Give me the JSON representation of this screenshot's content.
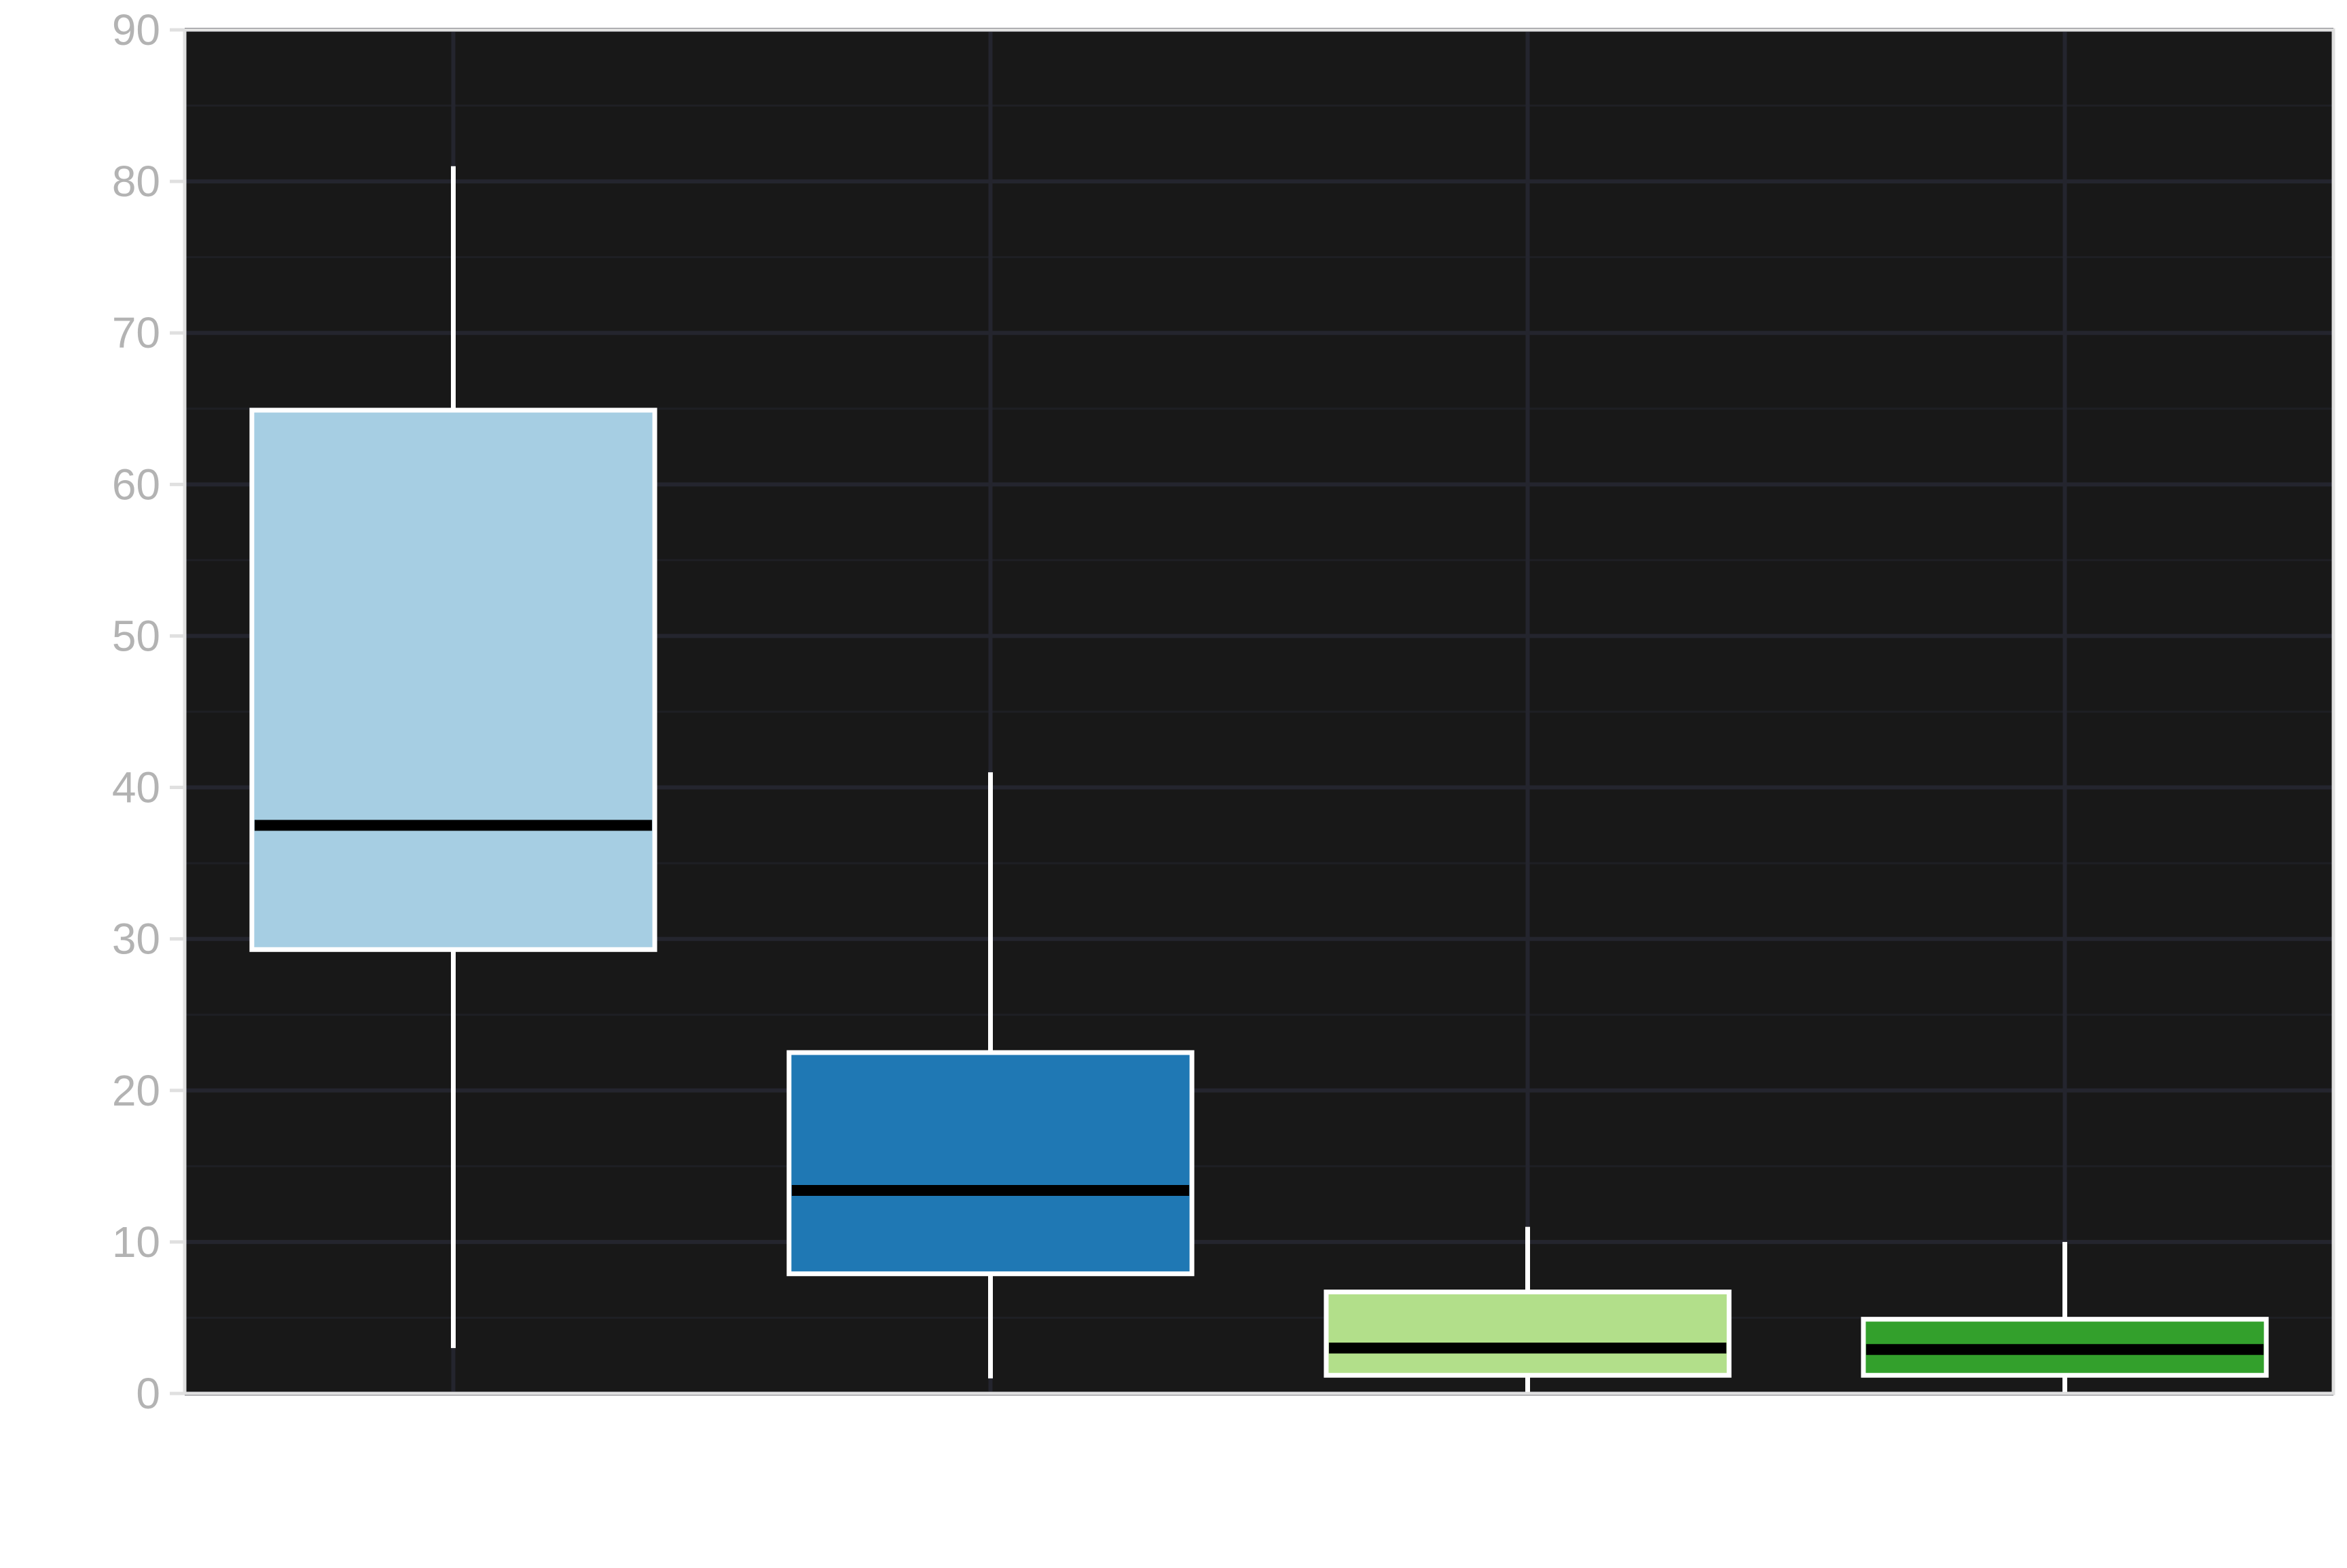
{
  "chart_data": {
    "type": "box",
    "title": "",
    "xlabel": "",
    "ylabel": "",
    "ylim": [
      0,
      90
    ],
    "yticks": [
      0,
      10,
      20,
      30,
      40,
      50,
      60,
      70,
      80,
      90
    ],
    "ytick_labels": [
      "0",
      "10",
      "20",
      "30",
      "40",
      "50",
      "60",
      "70",
      "80",
      "90"
    ],
    "grid": true,
    "legend": "none",
    "boxes": [
      {
        "whisker_low": 3,
        "q1": 29.3,
        "median": 37.5,
        "q3": 64.9,
        "whisker_high": 81,
        "color": "#a6cee3"
      },
      {
        "whisker_low": 1,
        "q1": 7.9,
        "median": 13.4,
        "q3": 22.5,
        "whisker_high": 41,
        "color": "#1f78b4"
      },
      {
        "whisker_low": 0,
        "q1": 1.2,
        "median": 3.0,
        "q3": 6.7,
        "whisker_high": 11,
        "color": "#b2df8a"
      },
      {
        "whisker_low": 0,
        "q1": 1.2,
        "median": 2.9,
        "q3": 4.9,
        "whisker_high": 10,
        "color": "#33a02c"
      }
    ],
    "colors": {
      "panel_background": "#181818",
      "major_grid": "#24252e",
      "minor_grid": "#1e1f24",
      "axis_line": "#e0e0e0",
      "tick_label": "#b3b3b3",
      "box_outline": "#ffffff",
      "median_line": "#000000",
      "whisker": "#ffffff"
    }
  }
}
